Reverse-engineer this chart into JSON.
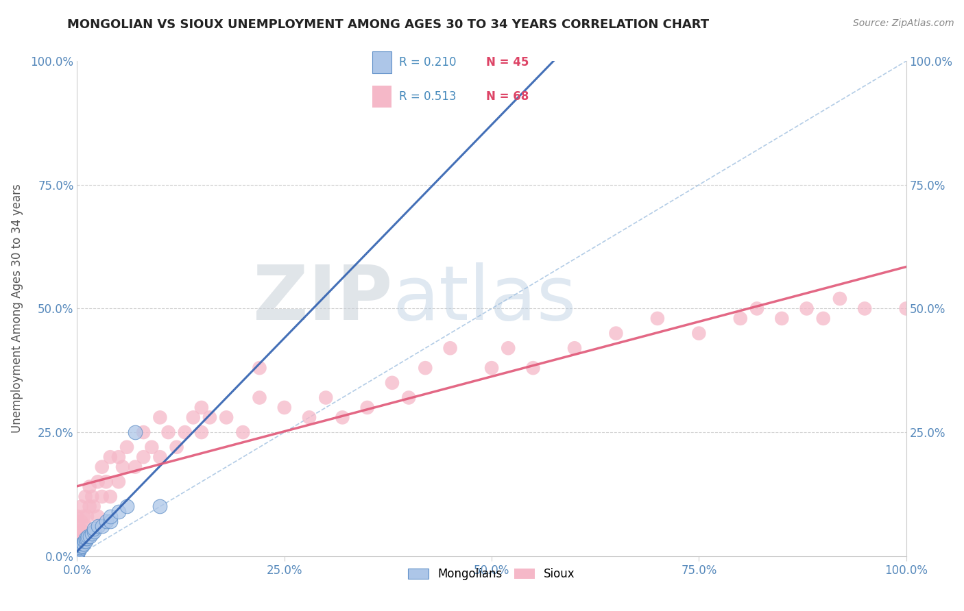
{
  "title": "MONGOLIAN VS SIOUX UNEMPLOYMENT AMONG AGES 30 TO 34 YEARS CORRELATION CHART",
  "source": "Source: ZipAtlas.com",
  "ylabel": "Unemployment Among Ages 30 to 34 years",
  "mongolian_R": 0.21,
  "mongolian_N": 45,
  "sioux_R": 0.513,
  "sioux_N": 68,
  "mongolian_color": "#adc6e8",
  "sioux_color": "#f5b8c8",
  "mongolian_edge_color": "#6090c8",
  "sioux_edge_color": "#e06080",
  "mongolian_line_color": "#3060b0",
  "sioux_line_color": "#e05878",
  "diag_line_color": "#a0c0e0",
  "background_color": "#ffffff",
  "grid_color": "#cccccc",
  "title_color": "#222222",
  "source_color": "#888888",
  "axis_label_color": "#5588bb",
  "ylabel_color": "#555555",
  "watermark_ZIP_color": "#c8d0d8",
  "watermark_atlas_color": "#b8cce0",
  "mongolian_x": [
    0.0,
    0.0,
    0.0,
    0.0,
    0.0,
    0.0,
    0.0,
    0.0,
    0.0,
    0.0,
    0.0,
    0.0,
    0.0,
    0.0,
    0.0,
    0.001,
    0.001,
    0.002,
    0.002,
    0.003,
    0.003,
    0.004,
    0.005,
    0.005,
    0.006,
    0.007,
    0.008,
    0.009,
    0.01,
    0.01,
    0.012,
    0.013,
    0.015,
    0.018,
    0.02,
    0.02,
    0.025,
    0.03,
    0.035,
    0.04,
    0.04,
    0.05,
    0.06,
    0.07,
    0.1
  ],
  "mongolian_y": [
    0.0,
    0.0,
    0.0,
    0.0,
    0.0,
    0.0,
    0.001,
    0.001,
    0.002,
    0.003,
    0.005,
    0.006,
    0.007,
    0.008,
    0.01,
    0.01,
    0.012,
    0.01,
    0.015,
    0.015,
    0.018,
    0.02,
    0.02,
    0.025,
    0.02,
    0.025,
    0.025,
    0.03,
    0.03,
    0.035,
    0.035,
    0.04,
    0.04,
    0.045,
    0.05,
    0.055,
    0.06,
    0.06,
    0.07,
    0.07,
    0.08,
    0.09,
    0.1,
    0.25,
    0.1
  ],
  "sioux_x": [
    0.0,
    0.0,
    0.001,
    0.002,
    0.003,
    0.005,
    0.005,
    0.007,
    0.008,
    0.01,
    0.01,
    0.012,
    0.015,
    0.015,
    0.018,
    0.02,
    0.025,
    0.025,
    0.03,
    0.03,
    0.035,
    0.04,
    0.04,
    0.05,
    0.05,
    0.055,
    0.06,
    0.07,
    0.08,
    0.08,
    0.09,
    0.1,
    0.1,
    0.11,
    0.12,
    0.13,
    0.14,
    0.15,
    0.15,
    0.16,
    0.18,
    0.2,
    0.22,
    0.22,
    0.25,
    0.28,
    0.3,
    0.32,
    0.35,
    0.38,
    0.4,
    0.42,
    0.45,
    0.5,
    0.52,
    0.55,
    0.6,
    0.65,
    0.7,
    0.75,
    0.8,
    0.82,
    0.85,
    0.88,
    0.9,
    0.92,
    0.95,
    1.0
  ],
  "sioux_y": [
    0.05,
    0.08,
    0.04,
    0.06,
    0.03,
    0.07,
    0.1,
    0.05,
    0.08,
    0.06,
    0.12,
    0.08,
    0.1,
    0.14,
    0.12,
    0.1,
    0.08,
    0.15,
    0.12,
    0.18,
    0.15,
    0.12,
    0.2,
    0.15,
    0.2,
    0.18,
    0.22,
    0.18,
    0.2,
    0.25,
    0.22,
    0.2,
    0.28,
    0.25,
    0.22,
    0.25,
    0.28,
    0.25,
    0.3,
    0.28,
    0.28,
    0.25,
    0.32,
    0.38,
    0.3,
    0.28,
    0.32,
    0.28,
    0.3,
    0.35,
    0.32,
    0.38,
    0.42,
    0.38,
    0.42,
    0.38,
    0.42,
    0.45,
    0.48,
    0.45,
    0.48,
    0.5,
    0.48,
    0.5,
    0.48,
    0.52,
    0.5,
    0.5
  ],
  "xtick_vals": [
    0.0,
    0.25,
    0.5,
    0.75,
    1.0
  ],
  "xtick_labels": [
    "0.0%",
    "25.0%",
    "50.0%",
    "75.0%",
    "100.0%"
  ],
  "ytick_vals": [
    0.0,
    0.25,
    0.5,
    0.75,
    1.0
  ],
  "ytick_labels": [
    "0.0%",
    "25.0%",
    "50.0%",
    "75.0%",
    "100.0%"
  ],
  "right_ytick_vals": [
    0.25,
    0.5,
    0.75,
    1.0
  ],
  "right_ytick_labels": [
    "25.0%",
    "50.0%",
    "75.0%",
    "100.0%"
  ]
}
